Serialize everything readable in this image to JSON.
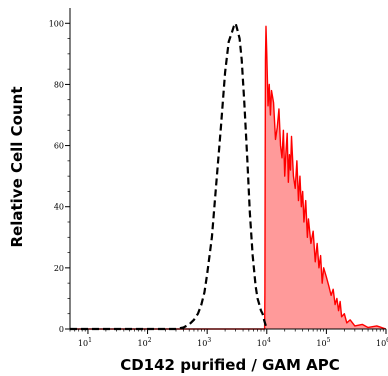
{
  "chart_data": {
    "type": "area",
    "xlabel": "CD142 purified / GAM APC",
    "ylabel": "Relative Cell Count",
    "xscale": "log",
    "xlim": [
      5,
      1000000
    ],
    "ylim": [
      0,
      105
    ],
    "x_ticks": [
      {
        "base": "10",
        "exp": "1",
        "value": 10
      },
      {
        "base": "10",
        "exp": "2",
        "value": 100
      },
      {
        "base": "10",
        "exp": "3",
        "value": 1000
      },
      {
        "base": "10",
        "exp": "4",
        "value": 10000
      },
      {
        "base": "10",
        "exp": "5",
        "value": 100000
      },
      {
        "base": "10",
        "exp": "6",
        "value": 1000000
      }
    ],
    "y_ticks": [
      {
        "label": "0",
        "value": 0
      },
      {
        "label": "20",
        "value": 20
      },
      {
        "label": "40",
        "value": 40
      },
      {
        "label": "60",
        "value": 60
      },
      {
        "label": "80",
        "value": 80
      },
      {
        "label": "100",
        "value": 100
      }
    ],
    "series": [
      {
        "style": "dashed",
        "color": "#000000",
        "fill": "none",
        "x": [
          5,
          300,
          400,
          500,
          600,
          700,
          800,
          900,
          1000,
          1200,
          1400,
          1700,
          2000,
          2300,
          2600,
          2800,
          3000,
          3200,
          3500,
          3800,
          4200,
          4700,
          5200,
          5800,
          6500,
          7000,
          7500,
          8000,
          8500,
          9000,
          10000
        ],
        "y": [
          0,
          0,
          0.5,
          1.5,
          3,
          5,
          8,
          12,
          18,
          30,
          46,
          66,
          84,
          94,
          97,
          99,
          100,
          98,
          95,
          88,
          74,
          56,
          38,
          24,
          14,
          10,
          8,
          6,
          5,
          3,
          0
        ]
      },
      {
        "style": "solid",
        "color": "#ff0000",
        "fill": "#ff9a9a",
        "x": [
          5,
          9200,
          9300,
          9400,
          9500,
          9700,
          10000,
          10500,
          11000,
          11500,
          12000,
          13000,
          14000,
          15000,
          16000,
          17000,
          18000,
          19000,
          20000,
          21000,
          22000,
          23000,
          24000,
          25000,
          26000,
          28000,
          30000,
          32000,
          34000,
          36000,
          38000,
          40000,
          42000,
          45000,
          48000,
          50000,
          55000,
          60000,
          65000,
          70000,
          75000,
          80000,
          85000,
          90000,
          100000,
          110000,
          120000,
          130000,
          140000,
          150000,
          160000,
          170000,
          180000,
          200000,
          220000,
          250000,
          300000,
          400000,
          500000,
          700000,
          1000000
        ],
        "y": [
          0,
          0,
          12,
          55,
          88,
          99,
          90,
          73,
          80,
          70,
          78,
          74,
          62,
          66,
          72,
          60,
          56,
          65,
          50,
          58,
          64,
          48,
          57,
          52,
          63,
          50,
          46,
          55,
          42,
          50,
          40,
          45,
          35,
          42,
          30,
          36,
          28,
          32,
          22,
          28,
          20,
          24,
          15,
          20,
          17,
          14,
          11,
          13,
          8,
          10,
          6,
          9,
          4,
          5,
          2,
          3,
          1,
          1.5,
          0.5,
          1,
          0
        ]
      }
    ],
    "grid": false,
    "legend": "none"
  }
}
